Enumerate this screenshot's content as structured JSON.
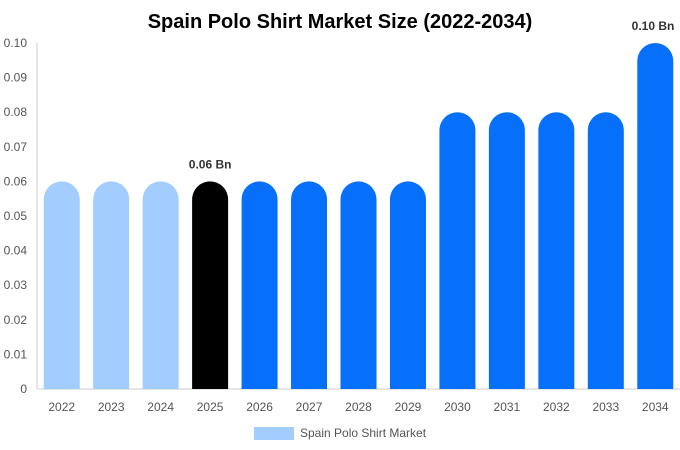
{
  "chart_data": {
    "type": "bar",
    "title": "Spain Polo Shirt Market Size (2022-2034)",
    "xlabel": "",
    "ylabel": "",
    "categories": [
      "2022",
      "2023",
      "2024",
      "2025",
      "2026",
      "2027",
      "2028",
      "2029",
      "2030",
      "2031",
      "2032",
      "2033",
      "2034"
    ],
    "series": [
      {
        "name": "Spain Polo Shirt Market",
        "values": [
          0.06,
          0.06,
          0.06,
          0.06,
          0.06,
          0.06,
          0.06,
          0.06,
          0.08,
          0.08,
          0.08,
          0.08,
          0.1
        ]
      }
    ],
    "bar_colors": [
      "#a3cdfd",
      "#a3cdfd",
      "#a3cdfd",
      "#000000",
      "#0670fa",
      "#0670fa",
      "#0670fa",
      "#0670fa",
      "#0670fa",
      "#0670fa",
      "#0670fa",
      "#0670fa",
      "#0670fa"
    ],
    "legend_color": "#a3cdfd",
    "ylim": [
      0,
      0.1
    ],
    "yticks": [
      "0",
      "0.01",
      "0.02",
      "0.03",
      "0.04",
      "0.05",
      "0.06",
      "0.07",
      "0.08",
      "0.09",
      "0.10"
    ],
    "data_labels": [
      {
        "category": "2025",
        "text": "0.06 Bn"
      },
      {
        "category": "2034",
        "text": "0.10 Bn"
      }
    ],
    "legend_position": "bottom-center",
    "grid": false
  }
}
